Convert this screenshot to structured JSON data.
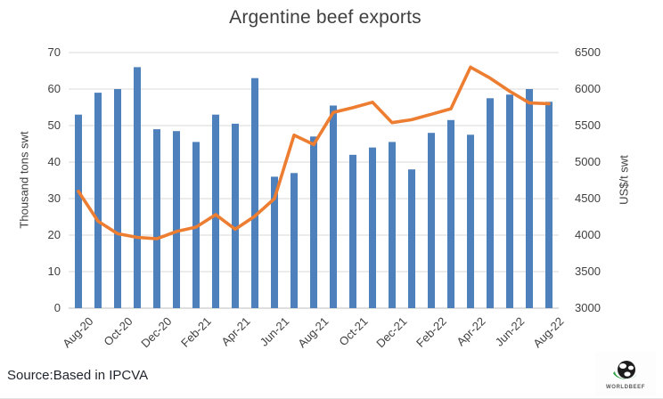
{
  "title": "Argentine beef exports",
  "source_note": "Source:Based in IPCVA",
  "logo_text": "WORLDBEEF",
  "chart_data": {
    "type": "bar",
    "subtype": "bar-line-combo",
    "title": "Argentine beef exports",
    "grid": true,
    "legend": "none",
    "categories": [
      "Aug-20",
      "Sep-20",
      "Oct-20",
      "Nov-20",
      "Dec-20",
      "Jan-21",
      "Feb-21",
      "Mar-21",
      "Apr-21",
      "May-21",
      "Jun-21",
      "Jul-21",
      "Aug-21",
      "Sep-21",
      "Oct-21",
      "Nov-21",
      "Dec-21",
      "Jan-22",
      "Feb-22",
      "Mar-22",
      "Apr-22",
      "May-22",
      "Jun-22",
      "Jul-22",
      "Aug-22"
    ],
    "series": [
      {
        "name": "exports_volume",
        "type": "bar",
        "axis": "left",
        "color": "#4E80BC",
        "values": [
          53,
          59,
          60,
          66,
          49,
          48.5,
          45.5,
          53,
          50.5,
          63,
          36,
          37,
          47,
          55.5,
          42,
          44,
          45.5,
          38,
          48,
          51.5,
          47.5,
          57.5,
          58.5,
          60,
          56.5
        ]
      },
      {
        "name": "export_price",
        "type": "line",
        "axis": "right",
        "color": "#ED7D31",
        "values": [
          4600,
          4190,
          4020,
          3970,
          3950,
          4050,
          4110,
          4280,
          4080,
          4260,
          4500,
          5370,
          5240,
          5680,
          5745,
          5820,
          5540,
          5580,
          5655,
          5730,
          6300,
          6150,
          5970,
          5810,
          5800
        ]
      }
    ],
    "left_axis": {
      "label": "Thousand tons swt",
      "min": 0,
      "max": 70,
      "ticks": [
        0,
        10,
        20,
        30,
        40,
        50,
        60,
        70
      ]
    },
    "right_axis": {
      "label": "US$/t swt",
      "min": 3000,
      "max": 6500,
      "ticks": [
        3000,
        3500,
        4000,
        4500,
        5000,
        5500,
        6000,
        6500
      ]
    },
    "x_tick_labels": [
      "Aug-20",
      "Oct-20",
      "Dec-20",
      "Feb-21",
      "Apr-21",
      "Jun-21",
      "Aug-21",
      "Oct-21",
      "Dec-21",
      "Feb-22",
      "Apr-22",
      "Jun-22",
      "Aug-22"
    ]
  }
}
